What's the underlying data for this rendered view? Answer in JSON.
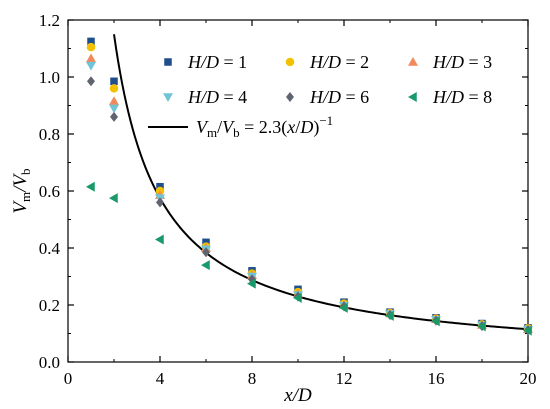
{
  "chart_data": {
    "type": "scatter",
    "xlabel": "x/D",
    "ylabel": "Vm/Vb",
    "xlim": [
      0,
      20
    ],
    "ylim": [
      0,
      1.2
    ],
    "xticks": [
      "0",
      "4",
      "8",
      "12",
      "16",
      "20"
    ],
    "yticks": [
      "0.0",
      "0.2",
      "0.4",
      "0.6",
      "0.8",
      "1.0",
      "1.2"
    ],
    "grid": false,
    "legend_position": "top-right",
    "series": [
      {
        "name": "H/D = 1",
        "marker": "square",
        "color": "#1f4e8c",
        "points": [
          [
            1,
            1.125
          ],
          [
            2,
            0.985
          ],
          [
            4,
            0.615
          ],
          [
            6,
            0.42
          ],
          [
            8,
            0.32
          ],
          [
            10,
            0.255
          ],
          [
            12,
            0.21
          ],
          [
            14,
            0.175
          ],
          [
            16,
            0.155
          ],
          [
            18,
            0.135
          ],
          [
            20,
            0.12
          ]
        ]
      },
      {
        "name": "H/D = 2",
        "marker": "circle",
        "color": "#f2c200",
        "points": [
          [
            1,
            1.105
          ],
          [
            2,
            0.96
          ],
          [
            4,
            0.6
          ],
          [
            6,
            0.405
          ],
          [
            8,
            0.31
          ],
          [
            10,
            0.245
          ],
          [
            12,
            0.205
          ],
          [
            14,
            0.172
          ],
          [
            16,
            0.152
          ],
          [
            18,
            0.132
          ],
          [
            20,
            0.118
          ]
        ]
      },
      {
        "name": "H/D = 3",
        "marker": "triangle-up",
        "color": "#f08a5d",
        "points": [
          [
            1,
            1.065
          ],
          [
            2,
            0.915
          ],
          [
            4,
            0.585
          ],
          [
            6,
            0.4
          ],
          [
            8,
            0.305
          ],
          [
            10,
            0.24
          ],
          [
            12,
            0.2
          ],
          [
            14,
            0.17
          ],
          [
            16,
            0.15
          ],
          [
            18,
            0.13
          ],
          [
            20,
            0.115
          ]
        ]
      },
      {
        "name": "H/D = 4",
        "marker": "triangle-down",
        "color": "#6fc5d6",
        "points": [
          [
            1,
            1.04
          ],
          [
            2,
            0.89
          ],
          [
            4,
            0.575
          ],
          [
            6,
            0.395
          ],
          [
            8,
            0.3
          ],
          [
            10,
            0.235
          ],
          [
            12,
            0.198
          ],
          [
            14,
            0.168
          ],
          [
            16,
            0.148
          ],
          [
            18,
            0.128
          ],
          [
            20,
            0.113
          ]
        ]
      },
      {
        "name": "H/D = 6",
        "marker": "diamond",
        "color": "#5f6470",
        "points": [
          [
            1,
            0.985
          ],
          [
            2,
            0.86
          ],
          [
            4,
            0.56
          ],
          [
            6,
            0.385
          ],
          [
            8,
            0.29
          ],
          [
            10,
            0.23
          ],
          [
            12,
            0.195
          ],
          [
            14,
            0.165
          ],
          [
            16,
            0.145
          ],
          [
            18,
            0.126
          ],
          [
            20,
            0.112
          ]
        ]
      },
      {
        "name": "H/D = 8",
        "marker": "triangle-left",
        "color": "#1a9a6b",
        "points": [
          [
            1,
            0.615
          ],
          [
            2,
            0.575
          ],
          [
            4,
            0.43
          ],
          [
            6,
            0.34
          ],
          [
            8,
            0.275
          ],
          [
            10,
            0.225
          ],
          [
            12,
            0.19
          ],
          [
            14,
            0.162
          ],
          [
            16,
            0.143
          ],
          [
            18,
            0.125
          ],
          [
            20,
            0.11
          ]
        ]
      }
    ],
    "fit_curve": {
      "label": "Vm/Vb = 2.3(x/D)^−1",
      "formula_coefficient": 2.3,
      "x_start": 2,
      "x_end": 20
    }
  }
}
